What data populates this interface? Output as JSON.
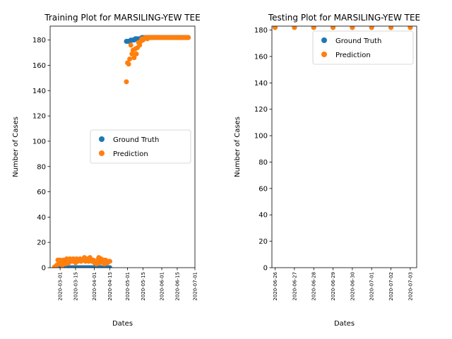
{
  "chart_data": [
    {
      "type": "scatter",
      "title": "Training Plot for MARSILING-YEW TEE",
      "xlabel": "Dates",
      "ylabel": "Number of Cases",
      "x_is_date": true,
      "xlim": [
        "2020-02-21",
        "2020-07-01"
      ],
      "ylim": [
        0,
        191
      ],
      "xticks": [
        "2020-03-01",
        "2020-03-15",
        "2020-04-01",
        "2020-04-15",
        "2020-05-01",
        "2020-05-15",
        "2020-06-01",
        "2020-06-15",
        "2020-07-01"
      ],
      "yticks": [
        0,
        20,
        40,
        60,
        80,
        100,
        120,
        140,
        160,
        180
      ],
      "legend": "center-right",
      "series": [
        {
          "name": "Ground Truth",
          "color": "#1f77b4",
          "points": [
            [
              "2020-02-25",
              0
            ],
            [
              "2020-02-26",
              0
            ],
            [
              "2020-02-27",
              0
            ],
            [
              "2020-02-28",
              0
            ],
            [
              "2020-02-29",
              0
            ],
            [
              "2020-03-01",
              0
            ],
            [
              "2020-03-02",
              0
            ],
            [
              "2020-03-03",
              0
            ],
            [
              "2020-03-04",
              0
            ],
            [
              "2020-03-05",
              0
            ],
            [
              "2020-03-06",
              0
            ],
            [
              "2020-03-07",
              0
            ],
            [
              "2020-03-08",
              0
            ],
            [
              "2020-03-09",
              0
            ],
            [
              "2020-03-10",
              0
            ],
            [
              "2020-03-11",
              0
            ],
            [
              "2020-03-12",
              0
            ],
            [
              "2020-03-13",
              0
            ],
            [
              "2020-03-14",
              0
            ],
            [
              "2020-03-15",
              0
            ],
            [
              "2020-03-16",
              0
            ],
            [
              "2020-03-17",
              0
            ],
            [
              "2020-03-18",
              0
            ],
            [
              "2020-03-19",
              0
            ],
            [
              "2020-03-20",
              0
            ],
            [
              "2020-03-21",
              0
            ],
            [
              "2020-03-22",
              0
            ],
            [
              "2020-03-23",
              0
            ],
            [
              "2020-03-24",
              0
            ],
            [
              "2020-03-25",
              0
            ],
            [
              "2020-03-26",
              0
            ],
            [
              "2020-03-27",
              0
            ],
            [
              "2020-03-28",
              0
            ],
            [
              "2020-03-29",
              0
            ],
            [
              "2020-03-30",
              0
            ],
            [
              "2020-03-31",
              0
            ],
            [
              "2020-04-01",
              0
            ],
            [
              "2020-04-02",
              0
            ],
            [
              "2020-04-03",
              0
            ],
            [
              "2020-04-04",
              0
            ],
            [
              "2020-04-05",
              0
            ],
            [
              "2020-04-06",
              0
            ],
            [
              "2020-04-07",
              0
            ],
            [
              "2020-04-08",
              0
            ],
            [
              "2020-04-09",
              0
            ],
            [
              "2020-04-10",
              0
            ],
            [
              "2020-04-11",
              0
            ],
            [
              "2020-04-12",
              0
            ],
            [
              "2020-04-13",
              0
            ],
            [
              "2020-04-14",
              0
            ],
            [
              "2020-04-15",
              0
            ],
            [
              "2020-04-30",
              179
            ],
            [
              "2020-05-01",
              179
            ],
            [
              "2020-05-02",
              179
            ],
            [
              "2020-05-03",
              179
            ],
            [
              "2020-05-04",
              180
            ],
            [
              "2020-05-05",
              180
            ],
            [
              "2020-05-06",
              180
            ],
            [
              "2020-05-07",
              180
            ],
            [
              "2020-05-08",
              181
            ],
            [
              "2020-05-09",
              181
            ],
            [
              "2020-05-10",
              181
            ],
            [
              "2020-05-11",
              181
            ],
            [
              "2020-05-12",
              181
            ],
            [
              "2020-05-13",
              181
            ],
            [
              "2020-05-14",
              182
            ],
            [
              "2020-05-15",
              182
            ],
            [
              "2020-05-16",
              182
            ],
            [
              "2020-05-17",
              182
            ],
            [
              "2020-05-18",
              182
            ],
            [
              "2020-05-19",
              182
            ],
            [
              "2020-05-20",
              182
            ],
            [
              "2020-05-21",
              182
            ],
            [
              "2020-05-22",
              182
            ],
            [
              "2020-05-23",
              182
            ],
            [
              "2020-05-24",
              182
            ],
            [
              "2020-05-25",
              182
            ],
            [
              "2020-05-26",
              182
            ],
            [
              "2020-05-27",
              182
            ],
            [
              "2020-05-28",
              182
            ],
            [
              "2020-05-29",
              182
            ],
            [
              "2020-05-30",
              182
            ],
            [
              "2020-05-31",
              182
            ],
            [
              "2020-06-01",
              182
            ],
            [
              "2020-06-02",
              182
            ],
            [
              "2020-06-03",
              182
            ],
            [
              "2020-06-04",
              182
            ],
            [
              "2020-06-05",
              182
            ],
            [
              "2020-06-06",
              182
            ],
            [
              "2020-06-07",
              182
            ],
            [
              "2020-06-08",
              182
            ],
            [
              "2020-06-09",
              182
            ],
            [
              "2020-06-10",
              182
            ],
            [
              "2020-06-11",
              182
            ],
            [
              "2020-06-12",
              182
            ],
            [
              "2020-06-13",
              182
            ],
            [
              "2020-06-14",
              182
            ],
            [
              "2020-06-15",
              182
            ],
            [
              "2020-06-16",
              182
            ],
            [
              "2020-06-17",
              182
            ],
            [
              "2020-06-18",
              182
            ],
            [
              "2020-06-19",
              182
            ],
            [
              "2020-06-20",
              182
            ],
            [
              "2020-06-21",
              182
            ],
            [
              "2020-06-22",
              182
            ],
            [
              "2020-06-23",
              182
            ],
            [
              "2020-06-24",
              182
            ],
            [
              "2020-06-25",
              182
            ]
          ]
        },
        {
          "name": "Prediction",
          "color": "#ff7f0e",
          "points": [
            [
              "2020-02-25",
              0.5
            ],
            [
              "2020-02-26",
              1
            ],
            [
              "2020-02-27",
              2
            ],
            [
              "2020-02-28",
              6
            ],
            [
              "2020-02-29",
              3
            ],
            [
              "2020-03-01",
              6
            ],
            [
              "2020-03-02",
              4
            ],
            [
              "2020-03-03",
              2
            ],
            [
              "2020-03-04",
              6
            ],
            [
              "2020-03-05",
              5
            ],
            [
              "2020-03-06",
              3
            ],
            [
              "2020-03-07",
              7
            ],
            [
              "2020-03-08",
              6
            ],
            [
              "2020-03-09",
              4
            ],
            [
              "2020-03-10",
              7
            ],
            [
              "2020-03-11",
              6
            ],
            [
              "2020-03-12",
              5
            ],
            [
              "2020-03-13",
              7
            ],
            [
              "2020-03-14",
              6
            ],
            [
              "2020-03-15",
              4
            ],
            [
              "2020-03-16",
              7
            ],
            [
              "2020-03-17",
              5
            ],
            [
              "2020-03-18",
              6
            ],
            [
              "2020-03-19",
              7
            ],
            [
              "2020-03-20",
              5
            ],
            [
              "2020-03-21",
              6
            ],
            [
              "2020-03-22",
              7
            ],
            [
              "2020-03-23",
              8
            ],
            [
              "2020-03-24",
              5
            ],
            [
              "2020-03-25",
              6
            ],
            [
              "2020-03-26",
              7
            ],
            [
              "2020-03-27",
              5
            ],
            [
              "2020-03-28",
              8
            ],
            [
              "2020-03-29",
              6
            ],
            [
              "2020-03-30",
              5
            ],
            [
              "2020-03-31",
              6
            ],
            [
              "2020-04-01",
              4
            ],
            [
              "2020-04-02",
              5
            ],
            [
              "2020-04-03",
              3
            ],
            [
              "2020-04-04",
              6
            ],
            [
              "2020-04-05",
              8
            ],
            [
              "2020-04-06",
              4
            ],
            [
              "2020-04-07",
              7
            ],
            [
              "2020-04-08",
              5
            ],
            [
              "2020-04-09",
              6
            ],
            [
              "2020-04-10",
              3
            ],
            [
              "2020-04-11",
              6
            ],
            [
              "2020-04-12",
              5
            ],
            [
              "2020-04-13",
              4
            ],
            [
              "2020-04-14",
              5
            ],
            [
              "2020-04-15",
              5
            ],
            [
              "2020-04-30",
              147
            ],
            [
              "2020-05-01",
              162
            ],
            [
              "2020-05-02",
              161
            ],
            [
              "2020-05-03",
              165
            ],
            [
              "2020-05-04",
              176
            ],
            [
              "2020-05-05",
              169
            ],
            [
              "2020-05-06",
              172
            ],
            [
              "2020-05-07",
              166
            ],
            [
              "2020-05-08",
              173
            ],
            [
              "2020-05-09",
              169
            ],
            [
              "2020-05-10",
              174
            ],
            [
              "2020-05-11",
              178
            ],
            [
              "2020-05-12",
              176
            ],
            [
              "2020-05-13",
              179
            ],
            [
              "2020-05-14",
              181
            ],
            [
              "2020-05-15",
              180
            ],
            [
              "2020-05-16",
              181
            ],
            [
              "2020-05-17",
              182
            ],
            [
              "2020-05-18",
              182
            ],
            [
              "2020-05-19",
              181
            ],
            [
              "2020-05-20",
              182
            ],
            [
              "2020-05-21",
              182
            ],
            [
              "2020-05-22",
              182
            ],
            [
              "2020-05-23",
              182
            ],
            [
              "2020-05-24",
              182
            ],
            [
              "2020-05-25",
              182
            ],
            [
              "2020-05-26",
              182
            ],
            [
              "2020-05-27",
              182
            ],
            [
              "2020-05-28",
              182
            ],
            [
              "2020-05-29",
              182
            ],
            [
              "2020-05-30",
              182
            ],
            [
              "2020-05-31",
              182
            ],
            [
              "2020-06-01",
              182
            ],
            [
              "2020-06-02",
              182
            ],
            [
              "2020-06-03",
              182
            ],
            [
              "2020-06-04",
              182
            ],
            [
              "2020-06-05",
              182
            ],
            [
              "2020-06-06",
              182
            ],
            [
              "2020-06-07",
              182
            ],
            [
              "2020-06-08",
              182
            ],
            [
              "2020-06-09",
              182
            ],
            [
              "2020-06-10",
              182
            ],
            [
              "2020-06-11",
              182
            ],
            [
              "2020-06-12",
              182
            ],
            [
              "2020-06-13",
              182
            ],
            [
              "2020-06-14",
              182
            ],
            [
              "2020-06-15",
              182
            ],
            [
              "2020-06-16",
              182
            ],
            [
              "2020-06-17",
              182
            ],
            [
              "2020-06-18",
              182
            ],
            [
              "2020-06-19",
              182
            ],
            [
              "2020-06-20",
              182
            ],
            [
              "2020-06-21",
              182
            ],
            [
              "2020-06-22",
              182
            ],
            [
              "2020-06-23",
              182
            ],
            [
              "2020-06-24",
              182
            ],
            [
              "2020-06-25",
              182
            ]
          ]
        }
      ]
    },
    {
      "type": "scatter",
      "title": "Testing Plot for MARSILING-YEW TEE",
      "xlabel": "Dates",
      "ylabel": "Number of Cases",
      "x_is_date": true,
      "xlim": [
        "2020-06-25 20:00",
        "2020-07-03 08:00"
      ],
      "ylim": [
        0,
        183
      ],
      "xticks": [
        "2020-06-26",
        "2020-06-27",
        "2020-06-28",
        "2020-06-29",
        "2020-06-30",
        "2020-07-01",
        "2020-07-02",
        "2020-07-03"
      ],
      "yticks": [
        0,
        20,
        40,
        60,
        80,
        100,
        120,
        140,
        160,
        180
      ],
      "legend": "top-right",
      "series": [
        {
          "name": "Ground Truth",
          "color": "#1f77b4",
          "points": [
            [
              "2020-06-26",
              182
            ],
            [
              "2020-06-27",
              182
            ],
            [
              "2020-06-28",
              182
            ],
            [
              "2020-06-29",
              182
            ],
            [
              "2020-06-30",
              182
            ],
            [
              "2020-07-01",
              182
            ],
            [
              "2020-07-02",
              182
            ],
            [
              "2020-07-03",
              182
            ]
          ]
        },
        {
          "name": "Prediction",
          "color": "#ff7f0e",
          "points": [
            [
              "2020-06-26",
              182
            ],
            [
              "2020-06-27",
              182
            ],
            [
              "2020-06-28",
              182
            ],
            [
              "2020-06-29",
              182
            ],
            [
              "2020-06-30",
              182
            ],
            [
              "2020-07-01",
              182
            ],
            [
              "2020-07-02",
              182
            ],
            [
              "2020-07-03",
              182
            ]
          ]
        }
      ]
    }
  ]
}
